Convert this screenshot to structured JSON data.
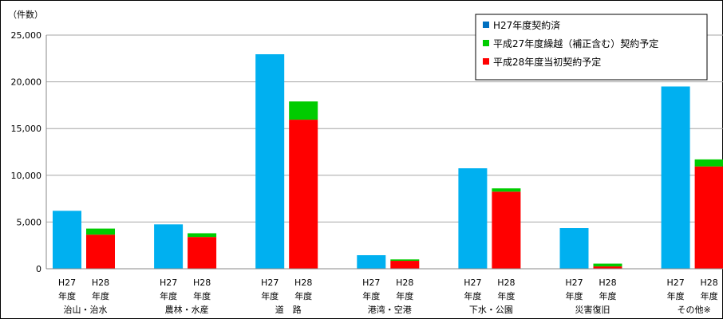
{
  "chart_data": {
    "type": "bar",
    "ylabel": "（件数）",
    "ylim": [
      0,
      25000
    ],
    "y_ticks": [
      "25,000",
      "20,000",
      "15,000",
      "10,000",
      "5,000",
      "0"
    ],
    "y_tick_values": [
      25000,
      20000,
      15000,
      10000,
      5000,
      0
    ],
    "stack_order_bottom_to_top": [
      "平成28年度当初契約予定",
      "平成27年度繰越（補正含む）契約予定"
    ],
    "categories": [
      {
        "name": "治山・治水",
        "h27_label": "H27",
        "h28_label": "H28",
        "year_word": "年度",
        "h27": 6200,
        "h28_initial": 3650,
        "h27_carryover": 650
      },
      {
        "name": "農林・水産",
        "h27_label": "H27",
        "h28_label": "H28",
        "year_word": "年度",
        "h27": 4750,
        "h28_initial": 3400,
        "h27_carryover": 400
      },
      {
        "name": "道　路",
        "h27_label": "H27",
        "h28_label": "H28",
        "year_word": "年度",
        "h27": 22950,
        "h28_initial": 15950,
        "h27_carryover": 1950
      },
      {
        "name": "港湾・空港",
        "h27_label": "H27",
        "h28_label": "H28",
        "year_word": "年度",
        "h27": 1450,
        "h28_initial": 850,
        "h27_carryover": 150
      },
      {
        "name": "下水・公園",
        "h27_label": "H27",
        "h28_label": "H28",
        "year_word": "年度",
        "h27": 10750,
        "h28_initial": 8250,
        "h27_carryover": 350
      },
      {
        "name": "災害復旧",
        "h27_label": "H27",
        "h28_label": "H28",
        "year_word": "年度",
        "h27": 4350,
        "h28_initial": 250,
        "h27_carryover": 300
      },
      {
        "name": "その他※",
        "h27_label": "H27",
        "h28_label": "H28",
        "year_word": "年度",
        "h27": 19500,
        "h28_initial": 10950,
        "h27_carryover": 750
      }
    ],
    "legend": [
      {
        "name": "H27年度契約済",
        "color": "#00b0f0",
        "swatch": "#0070c0"
      },
      {
        "name": "平成27年度繰越（補正含む）契約予定",
        "color": "#00cc00",
        "swatch": "#00cc00"
      },
      {
        "name": "平成28年度当初契約予定",
        "color": "#ff0000",
        "swatch": "#ff0000"
      }
    ],
    "legend_position": "top-right",
    "grid": true
  }
}
